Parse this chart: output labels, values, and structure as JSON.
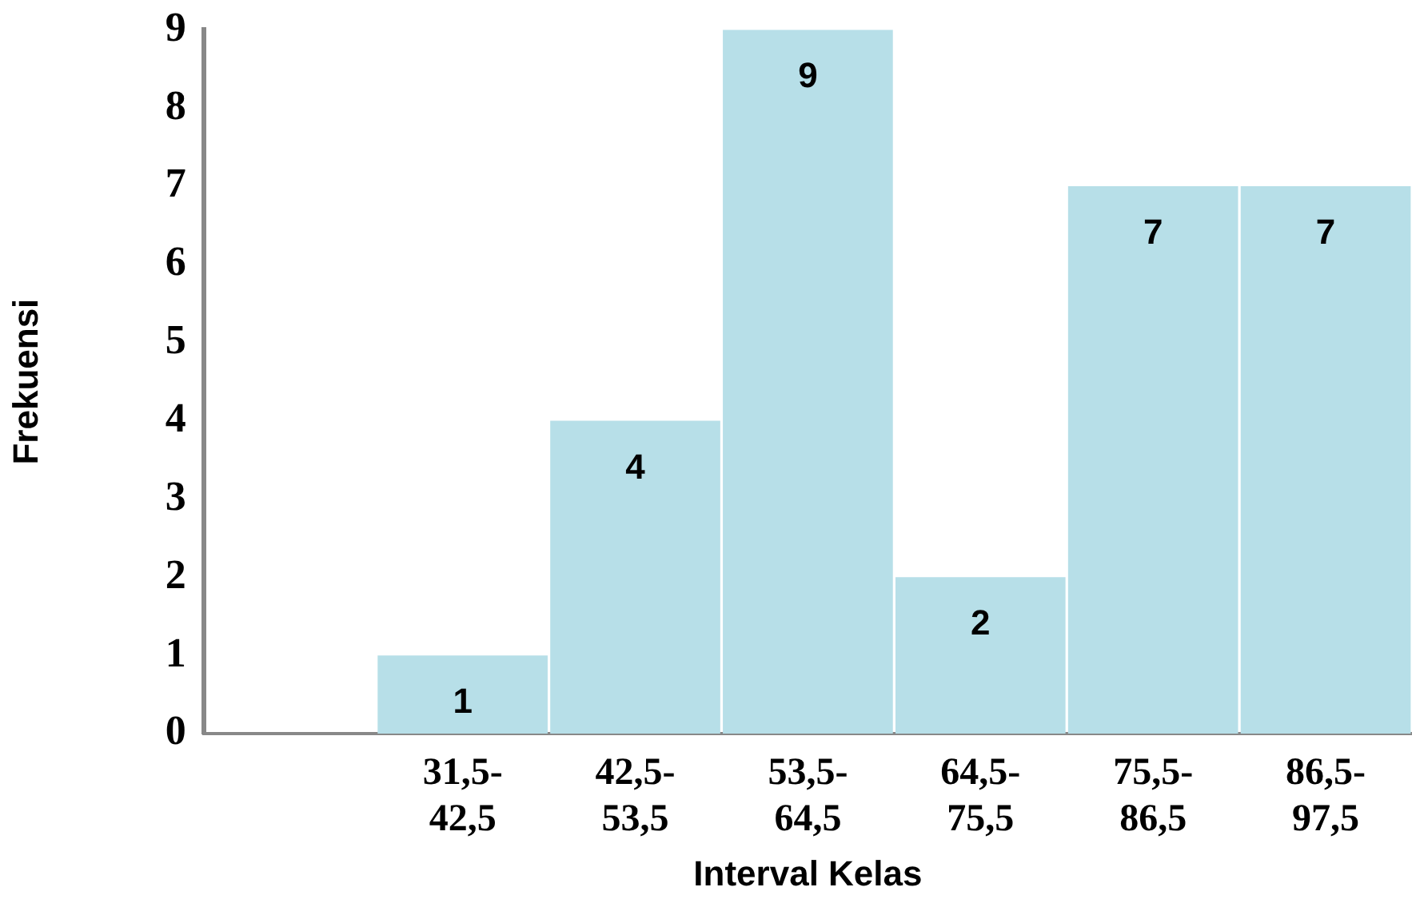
{
  "chart_data": {
    "type": "bar",
    "xlabel": "Interval Kelas",
    "ylabel": "Frekuensi",
    "categories": [
      null,
      "31,5-42,5",
      "42,5-53,5",
      "53,5-64,5",
      "64,5-75,5",
      "75,5-86,5",
      "86,5-97,5"
    ],
    "values": [
      0,
      1,
      4,
      9,
      2,
      7,
      7
    ],
    "value_labels": [
      null,
      "1",
      "4",
      "9",
      "2",
      "7",
      "7"
    ],
    "color": "#b7dfe8",
    "ylim": [
      0,
      9
    ],
    "yticks": [
      0,
      1,
      2,
      3,
      4,
      5,
      6,
      7,
      8,
      9
    ]
  }
}
